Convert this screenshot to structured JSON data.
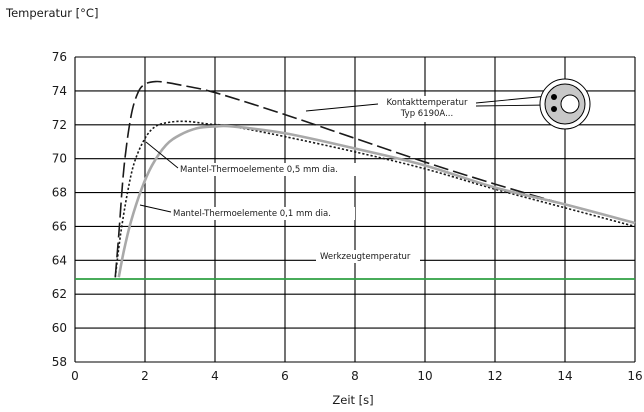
{
  "chart_data": {
    "type": "line",
    "title": "",
    "ylabel": "Temperatur [°C]",
    "xlabel": "Zeit [s]",
    "xlim": [
      0,
      16
    ],
    "ylim": [
      58,
      76
    ],
    "xticks": [
      0,
      2,
      4,
      6,
      8,
      10,
      12,
      14,
      16
    ],
    "yticks": [
      58,
      60,
      62,
      64,
      66,
      68,
      70,
      72,
      74,
      76
    ],
    "grid": true,
    "series": [
      {
        "name": "Kontakttemperatur Typ 6190A...",
        "style": "long-dash",
        "color": "#1a1a1a",
        "x": [
          1.15,
          1.25,
          1.4,
          1.6,
          1.8,
          2.0,
          2.3,
          2.6,
          3.0,
          4.0,
          6.0,
          8.0,
          10.0,
          12.0,
          14.0,
          16.0
        ],
        "y": [
          63.0,
          65.5,
          69.5,
          72.5,
          73.9,
          74.4,
          74.55,
          74.5,
          74.35,
          73.9,
          72.6,
          71.2,
          69.8,
          68.5,
          67.3,
          66.2
        ]
      },
      {
        "name": "Mantel-Thermoelemente 0,5 mm dia.",
        "style": "dotted",
        "color": "#1a1a1a",
        "x": [
          1.15,
          1.3,
          1.5,
          1.7,
          2.0,
          2.3,
          2.7,
          3.2,
          3.8,
          4.5,
          6.0,
          8.0,
          10.0,
          12.0,
          14.0,
          16.0
        ],
        "y": [
          63.0,
          65.5,
          68.0,
          69.8,
          71.2,
          71.9,
          72.15,
          72.2,
          72.05,
          71.9,
          71.3,
          70.4,
          69.4,
          68.2,
          67.1,
          66.0
        ]
      },
      {
        "name": "Mantel-Thermoelemente 0,1 mm dia.",
        "style": "solid",
        "color": "#a9a9a9",
        "x": [
          1.25,
          1.4,
          1.6,
          1.9,
          2.2,
          2.6,
          3.0,
          3.5,
          4.0,
          4.5,
          6.0,
          8.0,
          10.0,
          12.0,
          14.0,
          16.0
        ],
        "y": [
          63.0,
          64.6,
          66.3,
          68.2,
          69.6,
          70.8,
          71.4,
          71.8,
          71.9,
          71.9,
          71.5,
          70.6,
          69.6,
          68.3,
          67.3,
          66.2
        ]
      },
      {
        "name": "Werkzeugtemperatur",
        "style": "solid",
        "color": "#2ea043",
        "x": [
          0,
          16
        ],
        "y": [
          62.9,
          62.9
        ]
      }
    ],
    "annotations": [
      {
        "id": "kontakt",
        "lines": [
          "Kontakttemperatur",
          "Typ 6190A..."
        ]
      },
      {
        "id": "tc05",
        "lines": [
          "Mantel-Thermoelemente 0,5 mm dia."
        ]
      },
      {
        "id": "tc01",
        "lines": [
          "Mantel-Thermoelemente 0,1 mm dia."
        ]
      },
      {
        "id": "werkzeug",
        "lines": [
          "Werkzeugtemperatur"
        ]
      }
    ]
  }
}
